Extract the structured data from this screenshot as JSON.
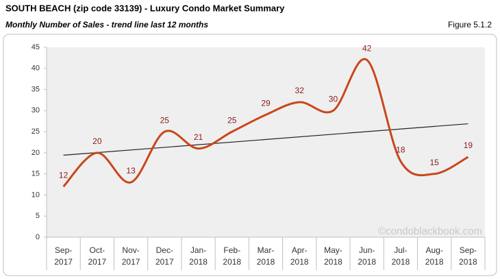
{
  "chart_data": {
    "type": "line",
    "title": "SOUTH BEACH (zip code 33139) - Luxury Condo Market Summary",
    "subtitle": "Monthly Number of Sales - trend line last 12 months",
    "figure": "Figure 5.1.2",
    "watermark": "©condoblackbook.com",
    "categories": [
      "Sep-2017",
      "Oct-2017",
      "Nov-2017",
      "Dec-2017",
      "Jan-2018",
      "Feb-2018",
      "Mar-2018",
      "Apr-2018",
      "May-2018",
      "Jun-2018",
      "Jul-2018",
      "Aug-2018",
      "Sep-2018"
    ],
    "values": [
      12,
      20,
      13,
      25,
      21,
      25,
      29,
      32,
      30,
      42,
      18,
      15,
      19
    ],
    "color": "#c9461b",
    "label_color": "#8b1a1a",
    "trendline": true,
    "trend_color": "#222222",
    "ylim": [
      0,
      45
    ],
    "yticks": [
      0,
      5,
      10,
      15,
      20,
      25,
      30,
      35,
      40,
      45
    ],
    "grid": false
  }
}
